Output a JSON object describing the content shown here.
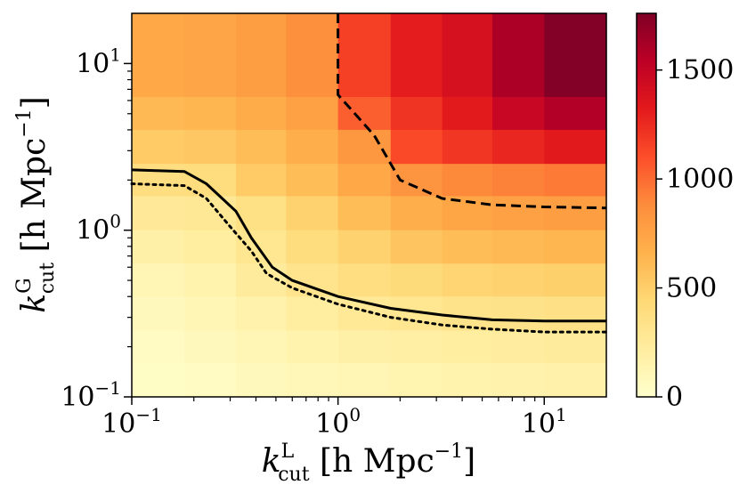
{
  "chart_data": {
    "type": "heatmap",
    "title": "",
    "x_scale": "log",
    "y_scale": "log",
    "xlim": [
      0.1,
      20
    ],
    "ylim": [
      0.1,
      20
    ],
    "xlabel": {
      "base": "k",
      "sup": "L",
      "sub": "cut",
      "unit": " [h Mpc",
      "unit_sup": "−1",
      "close": "]"
    },
    "ylabel": {
      "base": "k",
      "sup": "G",
      "sub": "cut",
      "unit": " [h Mpc",
      "unit_sup": "−1",
      "close": "]"
    },
    "x_ticks": [
      {
        "value": 0.1,
        "base": "10",
        "exp": "−1"
      },
      {
        "value": 1,
        "base": "10",
        "exp": "0"
      },
      {
        "value": 10,
        "base": "10",
        "exp": "1"
      }
    ],
    "y_ticks": [
      {
        "value": 0.1,
        "base": "10",
        "exp": "−1"
      },
      {
        "value": 1,
        "base": "10",
        "exp": "0"
      },
      {
        "value": 10,
        "base": "10",
        "exp": "1"
      }
    ],
    "x_edges": [
      0.1,
      0.18,
      0.32,
      0.56,
      1.0,
      1.8,
      3.2,
      5.6,
      10.0,
      20.0
    ],
    "y_edges": [
      0.1,
      0.16,
      0.25,
      0.4,
      0.63,
      1.0,
      1.6,
      2.5,
      4.0,
      6.3,
      20.0
    ],
    "z_rows_top_to_bottom": [
      [
        720,
        730,
        780,
        860,
        1160,
        1310,
        1400,
        1600,
        1750
      ],
      [
        620,
        640,
        700,
        760,
        1040,
        1210,
        1320,
        1480,
        1580
      ],
      [
        520,
        540,
        600,
        680,
        820,
        1120,
        1200,
        1270,
        1330
      ],
      [
        380,
        400,
        520,
        600,
        720,
        840,
        890,
        920,
        950
      ],
      [
        260,
        280,
        360,
        480,
        600,
        680,
        740,
        760,
        780
      ],
      [
        180,
        220,
        300,
        400,
        480,
        560,
        600,
        620,
        640
      ],
      [
        120,
        150,
        240,
        320,
        380,
        420,
        460,
        480,
        490
      ],
      [
        80,
        110,
        160,
        220,
        270,
        300,
        330,
        340,
        350
      ],
      [
        50,
        80,
        110,
        150,
        180,
        200,
        220,
        230,
        240
      ],
      [
        30,
        50,
        80,
        100,
        120,
        140,
        150,
        160,
        170
      ]
    ],
    "colorbar": {
      "min": 0,
      "max": 1760,
      "colormap": "YlOrRd",
      "stops": [
        "#ffffcc",
        "#ffeda0",
        "#fed976",
        "#feb24c",
        "#fd8d3c",
        "#fc4e2a",
        "#e31a1c",
        "#bd0026",
        "#800026"
      ],
      "ticks": [
        {
          "value": 0,
          "label": "0"
        },
        {
          "value": 500,
          "label": "500"
        },
        {
          "value": 1000,
          "label": "1000"
        },
        {
          "value": 1500,
          "label": "1500"
        }
      ]
    },
    "contours": [
      {
        "name": "solid",
        "style": "solid",
        "color": "#000000",
        "points": [
          [
            0.1,
            2.3
          ],
          [
            0.18,
            2.25
          ],
          [
            0.23,
            1.9
          ],
          [
            0.32,
            1.3
          ],
          [
            0.38,
            0.9
          ],
          [
            0.48,
            0.6
          ],
          [
            0.6,
            0.5
          ],
          [
            1.0,
            0.4
          ],
          [
            1.8,
            0.34
          ],
          [
            3.2,
            0.31
          ],
          [
            5.6,
            0.29
          ],
          [
            10,
            0.285
          ],
          [
            20,
            0.285
          ]
        ]
      },
      {
        "name": "dotted",
        "style": "dotted",
        "color": "#000000",
        "points": [
          [
            0.1,
            1.9
          ],
          [
            0.18,
            1.85
          ],
          [
            0.23,
            1.55
          ],
          [
            0.3,
            1.05
          ],
          [
            0.38,
            0.75
          ],
          [
            0.45,
            0.55
          ],
          [
            0.6,
            0.45
          ],
          [
            1.0,
            0.36
          ],
          [
            1.8,
            0.3
          ],
          [
            3.2,
            0.27
          ],
          [
            5.6,
            0.255
          ],
          [
            10,
            0.245
          ],
          [
            20,
            0.245
          ]
        ]
      },
      {
        "name": "dashed",
        "style": "dashed",
        "color": "#000000",
        "points": [
          [
            1.0,
            20
          ],
          [
            1.0,
            6.5
          ],
          [
            1.5,
            3.7
          ],
          [
            2.0,
            2.0
          ],
          [
            3.2,
            1.55
          ],
          [
            5.6,
            1.42
          ],
          [
            10,
            1.38
          ],
          [
            20,
            1.36
          ]
        ]
      }
    ]
  }
}
